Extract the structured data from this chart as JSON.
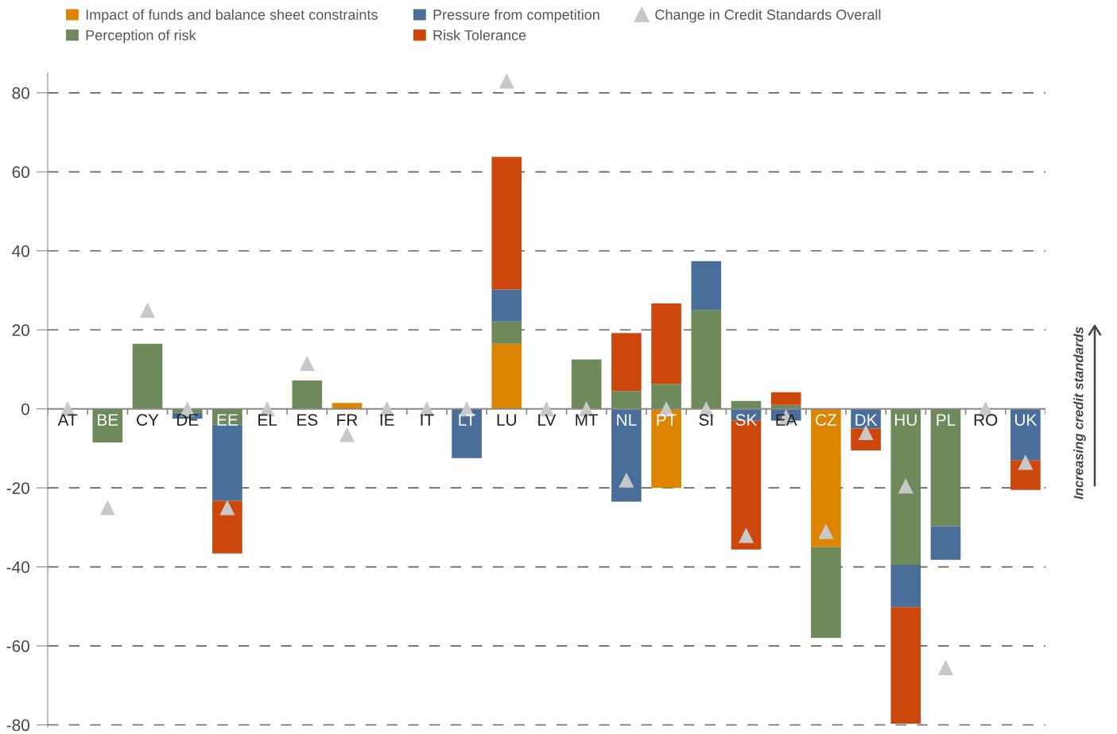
{
  "chart_data": {
    "type": "bar",
    "stacked": true,
    "categories": [
      "AT",
      "BE",
      "CY",
      "DE",
      "EE",
      "EL",
      "ES",
      "FR",
      "IE",
      "IT",
      "LT",
      "LU",
      "LV",
      "MT",
      "NL",
      "PT",
      "SI",
      "SK",
      "EA",
      "CZ",
      "DK",
      "HU",
      "PL",
      "RO",
      "UK"
    ],
    "series": [
      {
        "name": "Impact of funds and balance sheet constraints",
        "color": "#dd8400",
        "values": [
          0,
          0,
          0,
          0,
          0,
          0,
          0,
          1.5,
          0,
          0,
          0,
          16.5,
          0,
          0,
          0,
          -20,
          0,
          0,
          0,
          -35,
          0,
          0,
          0,
          0,
          0
        ]
      },
      {
        "name": "Perception of risk",
        "color": "#6e8a5a",
        "values": [
          0,
          -8.5,
          16.5,
          -1,
          -4,
          0,
          7.2,
          0,
          0,
          0,
          0,
          5.6,
          0,
          12.5,
          4.5,
          6.3,
          25,
          2,
          1,
          -23,
          0,
          -39.5,
          -29.7,
          0,
          0
        ]
      },
      {
        "name": "Pressure from competition",
        "color": "#4a6e9a",
        "values": [
          0,
          0,
          0,
          -1.5,
          -19.3,
          0,
          0,
          0,
          0,
          0,
          -12.5,
          8.1,
          0,
          0,
          -23.5,
          0,
          12.4,
          -3,
          -3,
          0,
          -5,
          -10.7,
          -8.5,
          0,
          -13
        ]
      },
      {
        "name": "Risk Tolerance",
        "color": "#cc470c",
        "values": [
          0,
          0,
          0,
          0,
          -13.3,
          0,
          0,
          0,
          0,
          0,
          0,
          33.6,
          0,
          0,
          14.7,
          20.4,
          0,
          -32.6,
          3.2,
          0,
          -5.5,
          -29.5,
          0,
          0,
          -7.5
        ]
      },
      {
        "name": "Change in Credit Standards Overall",
        "type": "scatter",
        "marker": "triangle",
        "color": "#c8c8c8",
        "values": [
          0,
          -25,
          25,
          0,
          -25,
          0,
          11.5,
          -6.5,
          0,
          0,
          0,
          83,
          0,
          0,
          -18,
          0,
          0,
          -32,
          -2,
          -31,
          -6,
          -19.5,
          -65.5,
          0,
          -13.5
        ]
      }
    ],
    "ylim": [
      -80.5,
      85
    ],
    "yticks": [
      -80,
      -60,
      -40,
      -20,
      0,
      20,
      40,
      60,
      80
    ],
    "grid": "y",
    "legend": "top left",
    "annotations": [
      "Increasing credit standards"
    ]
  }
}
